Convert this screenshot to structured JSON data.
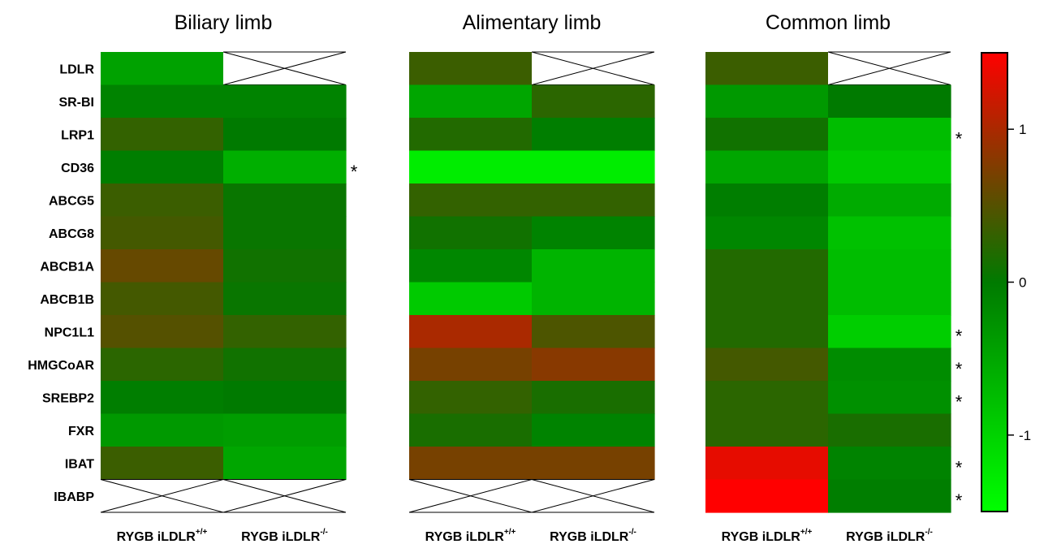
{
  "chart_data": {
    "type": "heatmap",
    "genes": [
      "LDLR",
      "SR-BI",
      "LRP1",
      "CD36",
      "ABCG5",
      "ABCG8",
      "ABCB1A",
      "ABCB1B",
      "NPC1L1",
      "HMGCoAR",
      "SREBP2",
      "FXR",
      "IBAT",
      "IBABP"
    ],
    "column_labels": [
      {
        "main": "RYGB iLDLR",
        "sup": "+/+"
      },
      {
        "main": "RYGB iLDLR",
        "sup": "-/-"
      }
    ],
    "color_scale": {
      "min": -1.5,
      "max": 1.5,
      "ticks": [
        {
          "value": 1,
          "label": "1"
        },
        {
          "value": 0,
          "label": "0"
        },
        {
          "value": -1,
          "label": "-1"
        }
      ],
      "colors": [
        "#00ff00",
        "#007a00",
        "#ff0000"
      ]
    },
    "panels": [
      {
        "title": "Biliary limb",
        "values": [
          [
            -0.45,
            null
          ],
          [
            -0.1,
            -0.1
          ],
          [
            0.3,
            0.0
          ],
          [
            -0.05,
            -0.6
          ],
          [
            0.35,
            0.05
          ],
          [
            0.4,
            0.05
          ],
          [
            0.6,
            0.1
          ],
          [
            0.4,
            0.05
          ],
          [
            0.5,
            0.3
          ],
          [
            0.25,
            0.1
          ],
          [
            -0.05,
            0.0
          ],
          [
            -0.35,
            -0.4
          ],
          [
            0.35,
            -0.5
          ],
          [
            null,
            null
          ]
        ],
        "significant": [
          false,
          false,
          false,
          true,
          false,
          false,
          false,
          false,
          false,
          false,
          false,
          false,
          false,
          false
        ]
      },
      {
        "title": "Alimentary limb",
        "values": [
          [
            0.35,
            null
          ],
          [
            -0.5,
            0.25
          ],
          [
            0.2,
            -0.05
          ],
          [
            -1.3,
            -1.3
          ],
          [
            0.3,
            0.3
          ],
          [
            0.1,
            -0.1
          ],
          [
            -0.15,
            -0.65
          ],
          [
            -0.9,
            -0.65
          ],
          [
            1.0,
            0.45
          ],
          [
            0.7,
            0.8
          ],
          [
            0.3,
            0.15
          ],
          [
            0.15,
            -0.1
          ],
          [
            0.7,
            0.7
          ],
          [
            null,
            null
          ]
        ],
        "significant": [
          false,
          false,
          false,
          false,
          false,
          false,
          false,
          false,
          false,
          false,
          false,
          false,
          false,
          false
        ]
      },
      {
        "title": "Common limb",
        "values": [
          [
            0.35,
            null
          ],
          [
            -0.35,
            0.0
          ],
          [
            0.1,
            -0.75
          ],
          [
            -0.5,
            -0.9
          ],
          [
            -0.05,
            -0.55
          ],
          [
            -0.15,
            -0.8
          ],
          [
            0.2,
            -0.75
          ],
          [
            0.2,
            -0.75
          ],
          [
            0.2,
            -0.95
          ],
          [
            0.4,
            -0.2
          ],
          [
            0.25,
            -0.25
          ],
          [
            0.25,
            0.15
          ],
          [
            1.35,
            -0.1
          ],
          [
            1.55,
            -0.05
          ]
        ],
        "significant": [
          false,
          false,
          true,
          false,
          false,
          false,
          false,
          false,
          true,
          true,
          true,
          false,
          true,
          true
        ]
      }
    ]
  }
}
